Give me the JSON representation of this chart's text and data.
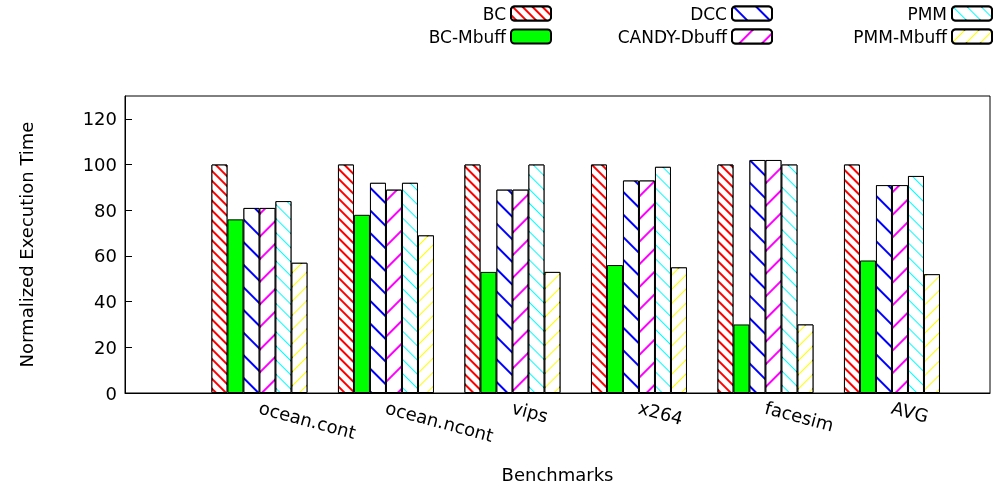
{
  "chart_data": {
    "type": "bar",
    "xlabel": "Benchmarks",
    "ylabel": "Normalized Execution Time",
    "categories": [
      "ocean.cont",
      "ocean.ncont",
      "vips",
      "x264",
      "facesim",
      "AVG"
    ],
    "series": [
      {
        "name": "BC",
        "color": "#ff0000",
        "values": [
          100,
          100,
          100,
          100,
          100,
          100
        ]
      },
      {
        "name": "BC-Mbuff",
        "color": "#00ff00",
        "values": [
          76,
          78,
          53,
          56,
          30,
          58
        ]
      },
      {
        "name": "DCC",
        "color": "#0000ff",
        "values": [
          81,
          92,
          89,
          93,
          102,
          91
        ]
      },
      {
        "name": "CANDY-Dbuff",
        "color": "#ff00ff",
        "values": [
          81,
          89,
          89,
          93,
          102,
          91
        ]
      },
      {
        "name": "PMM",
        "color": "#00ffff",
        "values": [
          84,
          92,
          100,
          99,
          100,
          95
        ]
      },
      {
        "name": "PMM-Mbuff",
        "color": "#ffff00",
        "values": [
          57,
          69,
          53,
          55,
          30,
          52
        ]
      }
    ],
    "ylim": [
      0,
      130
    ],
    "yticks": [
      0,
      20,
      40,
      60,
      80,
      100,
      120
    ],
    "grid": false,
    "legend": "top right"
  }
}
